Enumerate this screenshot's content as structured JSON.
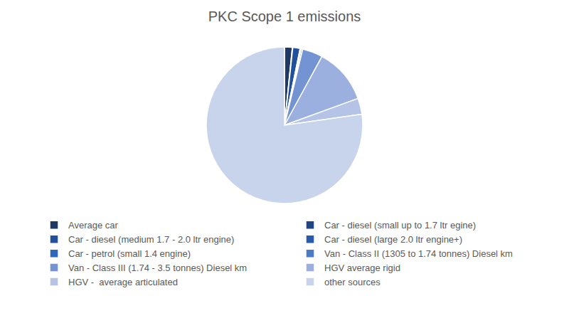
{
  "chart_data": {
    "type": "pie",
    "title": "PKC Scope 1 emissions",
    "categories": [
      "Average car",
      "Car - diesel (small up to 1.7 ltr egine)",
      "Car - diesel (medium 1.7 - 2.0 ltr engine)",
      "Car - diesel (large 2.0 ltr engine+)",
      "Car - petrol (small 1.4 engine)",
      "Van - Class II (1305 to 1.74 tonnes) Diesel km",
      "Van - Class III (1.74 - 3.5 tonnes) Diesel km",
      "HGV average rigid",
      "HGV -  average articulated",
      "other sources"
    ],
    "values": [
      1.6,
      0.1,
      1.5,
      0.2,
      0.05,
      0.3,
      4.2,
      11.5,
      3.3,
      77.25
    ],
    "colors": [
      "#1f3864",
      "#1f4682",
      "#22509a",
      "#2759ac",
      "#2e68bd",
      "#4a7cc6",
      "#7393d3",
      "#9cb0df",
      "#b4c3e6",
      "#c8d3ec"
    ],
    "legend": "bottom"
  }
}
